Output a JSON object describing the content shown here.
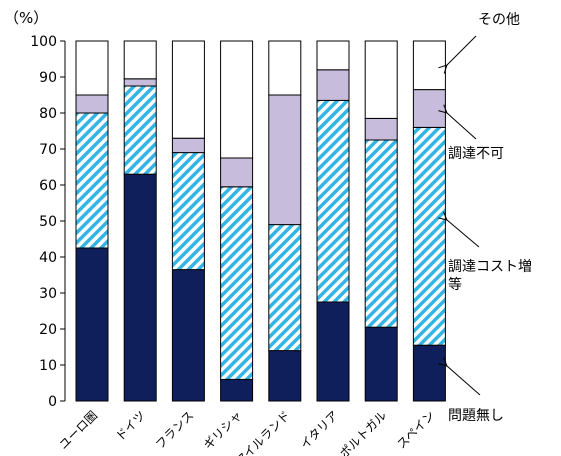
{
  "chart_data": {
    "type": "bar",
    "stacked": true,
    "ylabel": "（%）",
    "ylim": [
      0,
      100
    ],
    "yticks": [
      0,
      10,
      20,
      30,
      40,
      50,
      60,
      70,
      80,
      90,
      100
    ],
    "grid": false,
    "categories": [
      "ユーロ圏",
      "ドイツ",
      "フランス",
      "ギリシャ",
      "アイルランド",
      "イタリア",
      "ポルトガル",
      "スペイン"
    ],
    "series": [
      {
        "name": "問題無し",
        "color": "#0f1f5c",
        "pattern": "solid",
        "values": [
          42.5,
          63,
          36.5,
          6,
          14,
          27.5,
          20.5,
          15.5
        ]
      },
      {
        "name": "調達コスト増等",
        "color": "#33b4e6",
        "pattern": "diagonal-stripes",
        "values": [
          37.5,
          24.5,
          32.5,
          53.5,
          35,
          56,
          52,
          60.5
        ]
      },
      {
        "name": "調達不可",
        "color": "#c7bcdc",
        "pattern": "solid",
        "values": [
          5,
          2,
          4,
          8,
          36,
          8.5,
          6,
          10.5
        ]
      },
      {
        "name": "その他",
        "color": "#ffffff",
        "pattern": "solid",
        "values": [
          15,
          10.5,
          27,
          32.5,
          15,
          8,
          21.5,
          13.5
        ]
      }
    ],
    "legend_placement": "right, with arrows pointing to segments"
  }
}
